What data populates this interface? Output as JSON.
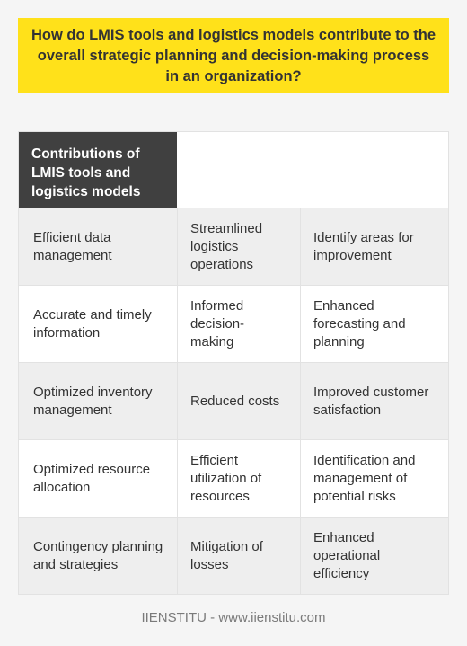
{
  "question": "How do LMIS tools and logistics models contribute to the overall strategic planning and decision-making process in an organization?",
  "table": {
    "header": "Contributions of LMIS tools and logistics models",
    "rows": [
      [
        "Efficient data management",
        "Streamlined logistics operations",
        "Identify areas for improvement"
      ],
      [
        "Accurate and timely information",
        "Informed decision-making",
        "Enhanced forecasting and planning"
      ],
      [
        "Optimized inventory management",
        "Reduced costs",
        "Improved customer satisfaction"
      ],
      [
        "Optimized resource allocation",
        "Efficient utilization of resources",
        "Identification and management of potential risks"
      ],
      [
        "Contingency planning and strategies",
        "Mitigation of losses",
        "Enhanced operational efficiency"
      ]
    ]
  },
  "footer": "IIENSTITU - www.iienstitu.com",
  "colors": {
    "question_bg": "#ffe11a",
    "header_bg": "#404040",
    "row_alt_bg": "#eeeeee"
  }
}
